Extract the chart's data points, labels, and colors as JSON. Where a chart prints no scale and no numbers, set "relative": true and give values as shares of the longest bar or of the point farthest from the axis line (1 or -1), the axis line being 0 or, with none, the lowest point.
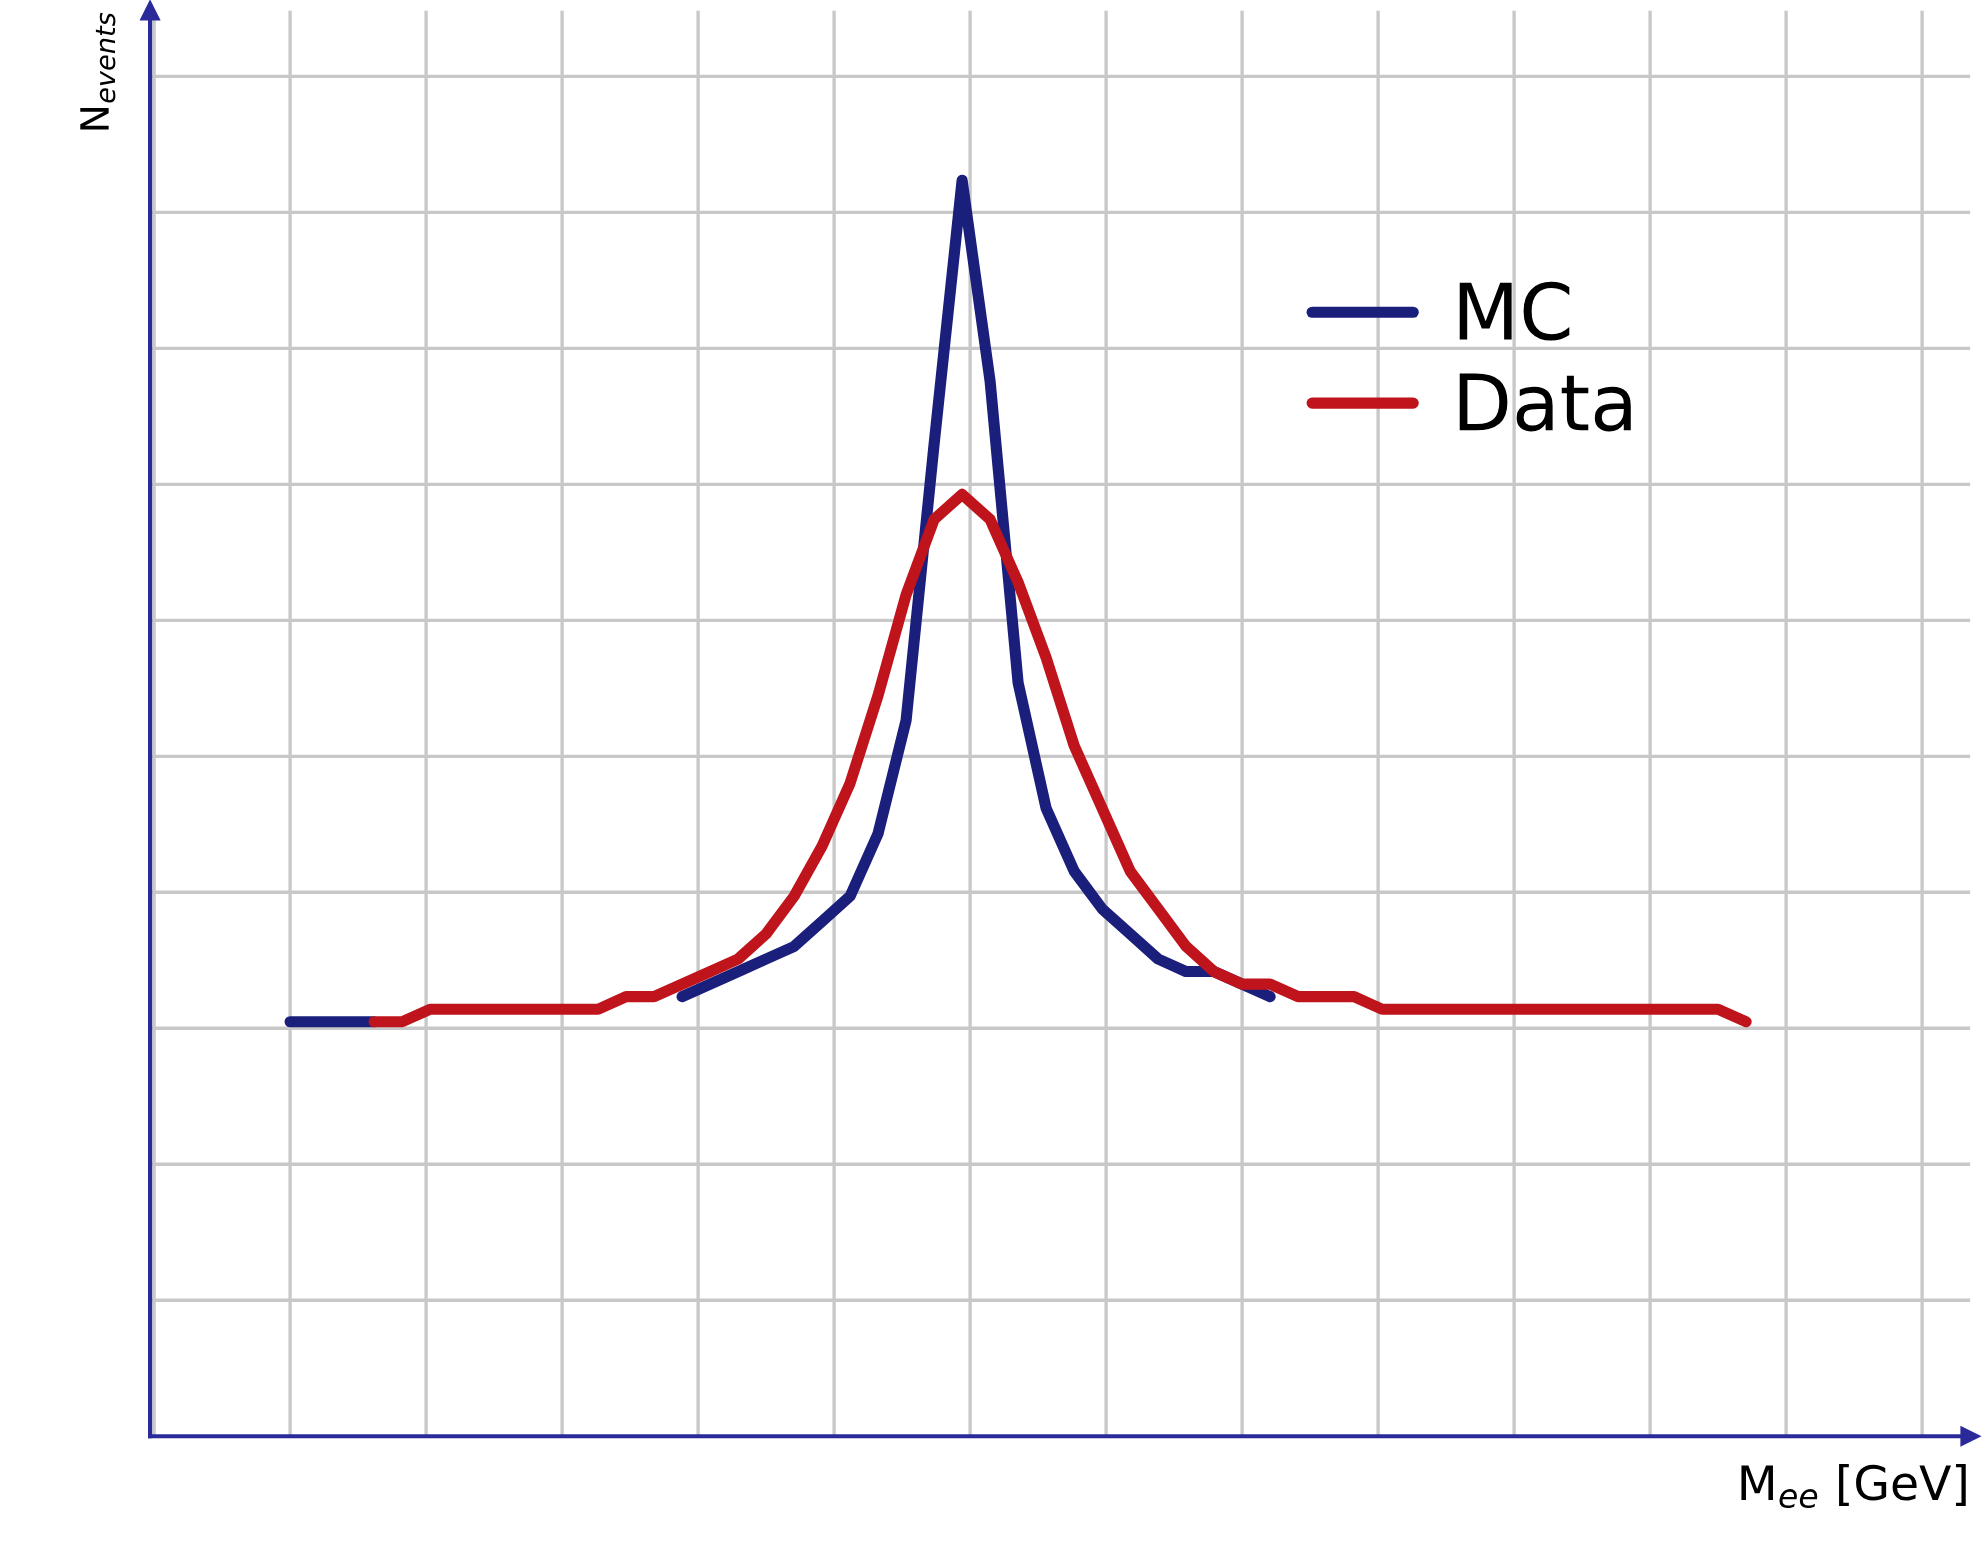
{
  "chart_data": {
    "type": "line",
    "relative": true,
    "xlabel": "M$_{ee}$ [GeV]",
    "ylabel": "N$_{events}$",
    "categories": [
      null,
      null,
      null,
      null,
      null,
      null,
      null,
      null,
      null,
      null,
      null,
      null,
      null,
      null,
      null,
      null,
      null,
      null,
      null,
      null,
      null,
      null,
      null,
      null,
      null,
      null,
      null,
      null,
      null,
      null,
      null,
      null,
      null,
      null,
      null,
      null,
      null,
      null,
      null,
      null,
      null,
      null,
      null,
      null,
      null,
      null,
      null,
      null,
      null,
      null,
      null,
      null,
      null
    ],
    "series": [
      {
        "name": "MC",
        "color": "#1b1f7c",
        "values": [
          0.33,
          0.33,
          0.33,
          0.33,
          null,
          null,
          null,
          null,
          null,
          null,
          null,
          null,
          null,
          null,
          0.35,
          0.36,
          0.37,
          0.38,
          0.39,
          0.41,
          0.43,
          0.48,
          0.57,
          0.79,
          1.0,
          0.84,
          0.6,
          0.5,
          0.45,
          0.42,
          0.4,
          0.38,
          0.37,
          0.37,
          0.36,
          0.35,
          null,
          null,
          null,
          null,
          null,
          null,
          null,
          null,
          null,
          null,
          null,
          null,
          null,
          null,
          null,
          null,
          null
        ]
      },
      {
        "name": "Data",
        "color": "#c0141c",
        "values": [
          null,
          null,
          null,
          0.33,
          0.33,
          0.34,
          0.34,
          0.34,
          0.34,
          0.34,
          0.34,
          0.34,
          0.35,
          0.35,
          0.36,
          0.37,
          0.38,
          0.4,
          0.43,
          0.47,
          0.52,
          0.59,
          0.67,
          0.73,
          0.75,
          0.73,
          0.68,
          0.62,
          0.55,
          0.5,
          0.45,
          0.42,
          0.39,
          0.37,
          0.36,
          0.36,
          0.35,
          0.35,
          0.35,
          0.34,
          0.34,
          0.34,
          0.34,
          0.34,
          0.34,
          0.34,
          0.34,
          0.34,
          0.34,
          0.34,
          0.34,
          0.34,
          0.33
        ]
      }
    ],
    "grid": true,
    "legend": "top right",
    "tick_labels": false,
    "marker": "none",
    "line_style": "solid"
  }
}
